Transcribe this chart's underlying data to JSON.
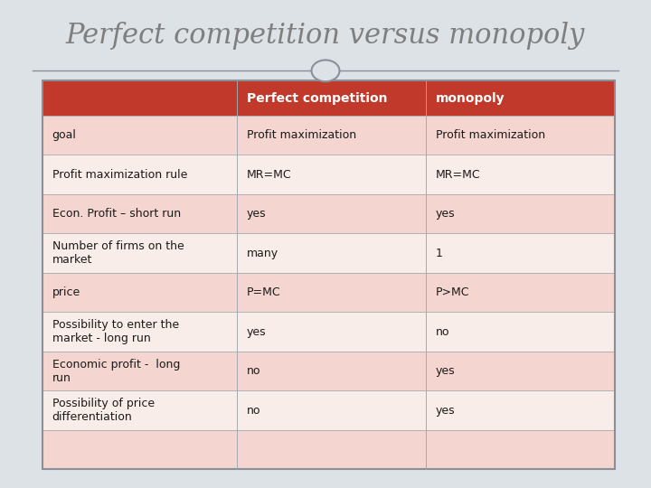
{
  "title": "Perfect competition versus monopoly",
  "title_color": "#7f7f7f",
  "header_color": "#c0392b",
  "header_text_color": "#ffffff",
  "row_color_light": "#f5d5d0",
  "row_color_white": "#f9ede9",
  "col_labels": [
    "Perfect competition",
    "monopoly"
  ],
  "rows": [
    [
      "goal",
      "Profit maximization",
      "Profit maximization"
    ],
    [
      "Profit maximization rule",
      "MR=MC",
      "MR=MC"
    ],
    [
      "Econ. Profit – short run",
      "yes",
      "yes"
    ],
    [
      "Number of firms on the\nmarket",
      "many",
      "1"
    ],
    [
      "price",
      "P=MC",
      "P>MC"
    ],
    [
      "Possibility to enter the\nmarket - long run",
      "yes",
      "no"
    ],
    [
      "Economic profit -  long\nrun",
      "no",
      "yes"
    ],
    [
      "Possibility of price\ndifferentiation",
      "no",
      "yes"
    ],
    [
      "",
      "",
      ""
    ]
  ],
  "font_size_title": 22,
  "font_size_header": 10,
  "font_size_body": 9,
  "slide_bg": "#dde2e7",
  "line_color": "#8a9099",
  "cell_edge_color": "#a0a8b0"
}
